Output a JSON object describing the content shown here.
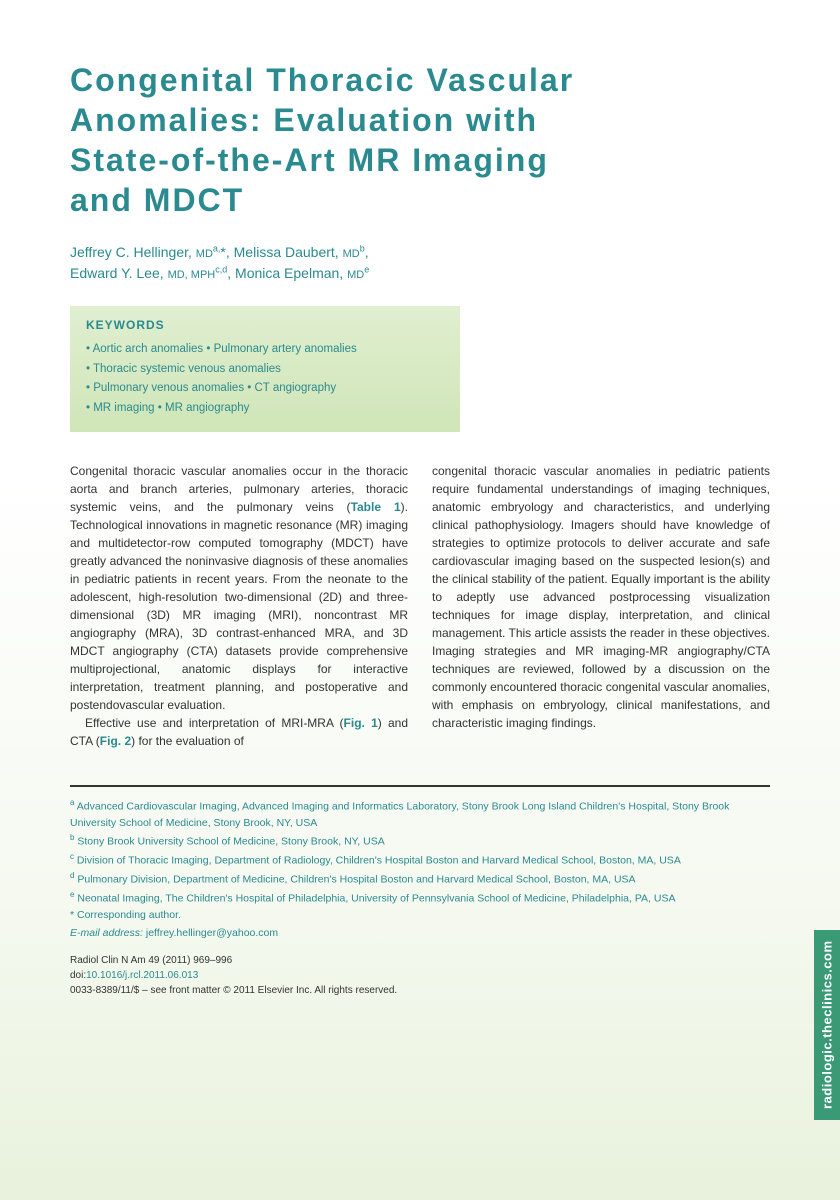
{
  "title": "Congenital Thoracic Vascular Anomalies: Evaluation with State-of-the-Art MR Imaging and MDCT",
  "authors_html": "Jeffrey C. Hellinger, <span class='deg'>MD</span><sup>a,</sup>*, Melissa Daubert, <span class='deg'>MD</span><sup>b</sup>,<br>Edward Y. Lee, <span class='deg'>MD, MPH</span><sup>c,d</sup>, Monica Epelman, <span class='deg'>MD</span><sup>e</sup>",
  "keywords": {
    "title": "KEYWORDS",
    "lines": [
      "• Aortic arch anomalies • Pulmonary artery anomalies",
      "• Thoracic systemic venous anomalies",
      "• Pulmonary venous anomalies • CT angiography",
      "• MR imaging • MR angiography"
    ]
  },
  "body": {
    "col1_p1": "Congenital thoracic vascular anomalies occur in the thoracic aorta and branch arteries, pulmonary arteries, thoracic systemic veins, and the pulmonary veins (",
    "table1": "Table 1",
    "col1_p1b": "). Technological innovations in magnetic resonance (MR) imaging and multidetector-row computed tomography (MDCT) have greatly advanced the noninvasive diagnosis of these anomalies in pediatric patients in recent years. From the neonate to the adolescent, high-resolution two-dimensional (2D) and three-dimensional (3D) MR imaging (MRI), noncontrast MR angiography (MRA), 3D contrast-enhanced MRA, and 3D MDCT angiography (CTA) datasets provide comprehensive multiprojectional, anatomic displays for interactive interpretation, treatment planning, and postoperative and postendovascular evaluation.",
    "col1_p2a": "Effective use and interpretation of MRI-MRA (",
    "fig1": "Fig. 1",
    "col1_p2b": ") and CTA (",
    "fig2": "Fig. 2",
    "col1_p2c": ") for the evaluation of",
    "col2_p1": "congenital thoracic vascular anomalies in pediatric patients require fundamental understandings of imaging techniques, anatomic embryology and characteristics, and underlying clinical pathophysiology. Imagers should have knowledge of strategies to optimize protocols to deliver accurate and safe cardiovascular imaging based on the suspected lesion(s) and the clinical stability of the patient. Equally important is the ability to adeptly use advanced postprocessing visualization techniques for image display, interpretation, and clinical management. This article assists the reader in these objectives. Imaging strategies and MR imaging-MR angiography/CTA techniques are reviewed, followed by a discussion on the commonly encountered thoracic congenital vascular anomalies, with emphasis on embryology, clinical manifestations, and characteristic imaging findings."
  },
  "affiliations": [
    {
      "sup": "a",
      "text": "Advanced Cardiovascular Imaging, Advanced Imaging and Informatics Laboratory, Stony Brook Long Island Children's Hospital, Stony Brook University School of Medicine, Stony Brook, NY, USA"
    },
    {
      "sup": "b",
      "text": "Stony Brook University School of Medicine, Stony Brook, NY, USA"
    },
    {
      "sup": "c",
      "text": "Division of Thoracic Imaging, Department of Radiology, Children's Hospital Boston and Harvard Medical School, Boston, MA, USA"
    },
    {
      "sup": "d",
      "text": "Pulmonary Division, Department of Medicine, Children's Hospital Boston and Harvard Medical School, Boston, MA, USA"
    },
    {
      "sup": "e",
      "text": "Neonatal Imaging, The Children's Hospital of Philadelphia, University of Pennsylvania School of Medicine, Philadelphia, PA, USA"
    }
  ],
  "corresponding": "* Corresponding author.",
  "email_label": "E-mail address:",
  "email": "jeffrey.hellinger@yahoo.com",
  "citation": {
    "line1": "Radiol Clin N Am 49 (2011) 969–996",
    "doi_prefix": "doi:",
    "doi": "10.1016/j.rcl.2011.06.013",
    "line3": "0033-8389/11/$ – see front matter © 2011 Elsevier Inc. All rights reserved."
  },
  "side_tab": "radiologic.theclinics.com",
  "colors": {
    "teal": "#2a8a8f",
    "green_tab": "#3a9a75",
    "keyword_bg_top": "#e0efd0",
    "keyword_bg_bottom": "#d0e5b8",
    "text": "#333333"
  }
}
